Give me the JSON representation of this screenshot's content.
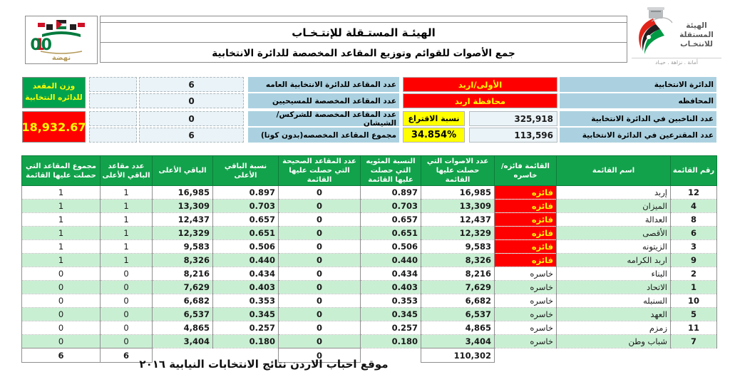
{
  "header": {
    "org_title": "الهيئـة المستـقلة للإنتـخـاب",
    "doc_title": "جمع الأصوات للقوائم وتوزيع المقاعد المخصصة للدائرة الانتخابية",
    "left_logo": {
      "number": "100",
      "caption": "نهضة"
    },
    "right_logo": {
      "line1": "الهيئة المستقلة",
      "line2": "للانتخـاب",
      "tagline": "أمانة . نزاهة . حيـاد"
    }
  },
  "info": {
    "district": {
      "label": "الدائرة الانتخابية",
      "value": "الأولى/اربد"
    },
    "governorate": {
      "label": "المحافظه",
      "value": "محافظة اربد"
    },
    "voters": {
      "label": "عدد الناخبين في الدائرة الانتخابية",
      "value": "325,918"
    },
    "voted": {
      "label": "عدد المقترعين في الدائرة الانتخابية",
      "value": "113,596"
    },
    "turnout": {
      "label": "نسبة الاقتراع",
      "value": "34.854%"
    },
    "seats_general": {
      "label": "عدد المقاعد للدائرة الانتخابية العامه",
      "value": "6"
    },
    "seats_christian": {
      "label": "عدد المقاعد المخصصة للمسيحيين",
      "value": "0"
    },
    "seats_circassian": {
      "label": "عدد المقاعد المخصصة للشركس/الشيشان",
      "value": "0"
    },
    "seats_total": {
      "label": "مجموع المقاعد المخصصه(بدون كوتا)",
      "value": "6"
    },
    "seat_weight": {
      "label": "وزن المقعد للدائره النتخابية",
      "value": "18,932.67"
    }
  },
  "table": {
    "headers": [
      "رقم القائمة",
      "اسم القائمة",
      "القائمة فائزه/خاسره",
      "عدد الاصوات التي حصلت عليها القائمة",
      "النسبة المئويه التي حصلت عليها القائمة",
      "عدد المقاعد الصحيحة التي حصلت عليها القائمة",
      "نسبة الباقي الأعلى",
      "الباقي الأعلى",
      "عدد مقاعد الباقي الأعلى",
      "مجموع المقاعد التي حصلت عليها القائمة"
    ],
    "rows": [
      {
        "num": "12",
        "name": "إربد",
        "status": "فائزه",
        "won": true,
        "votes": "16,985",
        "pct": "0.897",
        "direct_seats": "0",
        "remainder_pct": "0.897",
        "remainder": "16,985",
        "remainder_seats": "1",
        "total_seats": "1"
      },
      {
        "num": "4",
        "name": "الميزان",
        "status": "فائزه",
        "won": true,
        "votes": "13,309",
        "pct": "0.703",
        "direct_seats": "0",
        "remainder_pct": "0.703",
        "remainder": "13,309",
        "remainder_seats": "1",
        "total_seats": "1"
      },
      {
        "num": "8",
        "name": "العدالة",
        "status": "فائزه",
        "won": true,
        "votes": "12,437",
        "pct": "0.657",
        "direct_seats": "0",
        "remainder_pct": "0.657",
        "remainder": "12,437",
        "remainder_seats": "1",
        "total_seats": "1"
      },
      {
        "num": "6",
        "name": "الأقصى",
        "status": "فائزه",
        "won": true,
        "votes": "12,329",
        "pct": "0.651",
        "direct_seats": "0",
        "remainder_pct": "0.651",
        "remainder": "12,329",
        "remainder_seats": "1",
        "total_seats": "1"
      },
      {
        "num": "3",
        "name": "الزيتونه",
        "status": "فائزه",
        "won": true,
        "votes": "9,583",
        "pct": "0.506",
        "direct_seats": "0",
        "remainder_pct": "0.506",
        "remainder": "9,583",
        "remainder_seats": "1",
        "total_seats": "1"
      },
      {
        "num": "9",
        "name": "اربد الكرامه",
        "status": "فائزه",
        "won": true,
        "votes": "8,326",
        "pct": "0.440",
        "direct_seats": "0",
        "remainder_pct": "0.440",
        "remainder": "8,326",
        "remainder_seats": "1",
        "total_seats": "1"
      },
      {
        "num": "2",
        "name": "البناء",
        "status": "خاسره",
        "won": false,
        "votes": "8,216",
        "pct": "0.434",
        "direct_seats": "0",
        "remainder_pct": "0.434",
        "remainder": "8,216",
        "remainder_seats": "0",
        "total_seats": "0"
      },
      {
        "num": "1",
        "name": "الاتحاد",
        "status": "خاسره",
        "won": false,
        "votes": "7,629",
        "pct": "0.403",
        "direct_seats": "0",
        "remainder_pct": "0.403",
        "remainder": "7,629",
        "remainder_seats": "0",
        "total_seats": "0"
      },
      {
        "num": "10",
        "name": "السنبله",
        "status": "خاسره",
        "won": false,
        "votes": "6,682",
        "pct": "0.353",
        "direct_seats": "0",
        "remainder_pct": "0.353",
        "remainder": "6,682",
        "remainder_seats": "0",
        "total_seats": "0"
      },
      {
        "num": "5",
        "name": "العهد",
        "status": "خاسره",
        "won": false,
        "votes": "6,537",
        "pct": "0.345",
        "direct_seats": "0",
        "remainder_pct": "0.345",
        "remainder": "6,537",
        "remainder_seats": "0",
        "total_seats": "0"
      },
      {
        "num": "11",
        "name": "زمزم",
        "status": "خاسره",
        "won": false,
        "votes": "4,865",
        "pct": "0.257",
        "direct_seats": "0",
        "remainder_pct": "0.257",
        "remainder": "4,865",
        "remainder_seats": "0",
        "total_seats": "0"
      },
      {
        "num": "7",
        "name": "شباب وطن",
        "status": "خاسره",
        "won": false,
        "votes": "3,404",
        "pct": "0.180",
        "direct_seats": "0",
        "remainder_pct": "0.180",
        "remainder": "3,404",
        "remainder_seats": "0",
        "total_seats": "0"
      }
    ],
    "totals": {
      "votes": "110,302",
      "direct_seats": "0",
      "remainder_seats": "6",
      "total_seats": "6"
    }
  },
  "footer": {
    "credit": "موقع احباب الاردن نتائج الانتخابات النيابية ٢٠١٦"
  },
  "colors": {
    "header_green": "#12a24b",
    "row_alt_green": "#c9efd3",
    "winner_red": "#ff0000",
    "accent_yellow": "#ffff00",
    "label_blue": "#abd1e0",
    "value_bg": "#eaf3f7",
    "seat_weight_green": "#00a24e"
  }
}
